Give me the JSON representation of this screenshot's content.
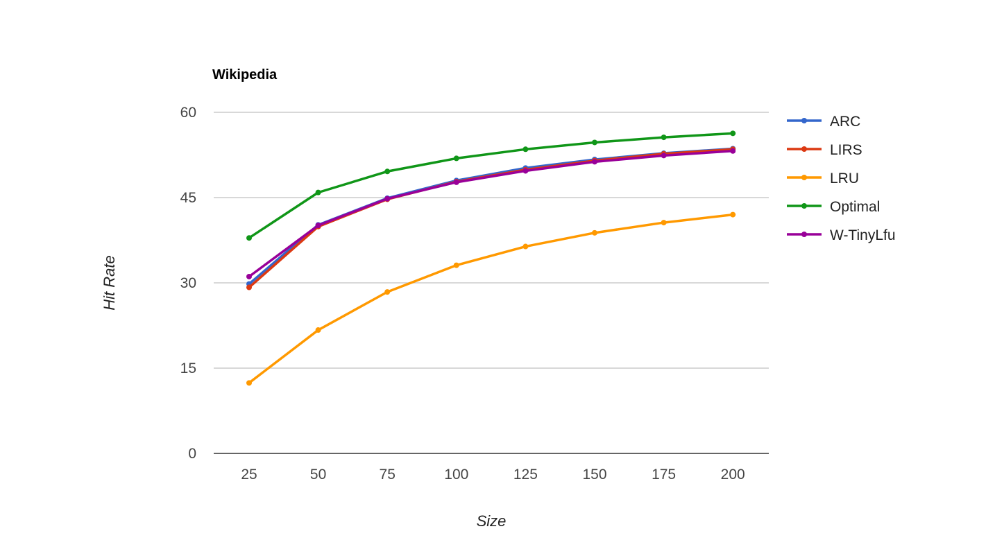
{
  "chart_data": {
    "type": "line",
    "title": "Wikipedia",
    "xlabel": "Size",
    "ylabel": "Hit Rate",
    "x": [
      25,
      50,
      75,
      100,
      125,
      150,
      175,
      200
    ],
    "ylim": [
      0,
      60
    ],
    "yticks": [
      0,
      15,
      30,
      45,
      60
    ],
    "grid": true,
    "legend_position": "right",
    "series": [
      {
        "name": "ARC",
        "color": "#3366cc",
        "values": [
          29.8,
          40.2,
          44.9,
          48.0,
          50.2,
          51.7,
          52.8,
          53.6
        ]
      },
      {
        "name": "LIRS",
        "color": "#dc3912",
        "values": [
          29.2,
          39.9,
          44.7,
          47.8,
          49.9,
          51.5,
          52.7,
          53.5
        ]
      },
      {
        "name": "LRU",
        "color": "#ff9900",
        "values": [
          12.4,
          21.7,
          28.4,
          33.1,
          36.4,
          38.8,
          40.6,
          42.0
        ]
      },
      {
        "name": "Optimal",
        "color": "#109618",
        "values": [
          37.9,
          45.9,
          49.6,
          51.9,
          53.5,
          54.7,
          55.6,
          56.3
        ]
      },
      {
        "name": "W-TinyLfu",
        "color": "#990099",
        "values": [
          31.1,
          40.1,
          44.8,
          47.7,
          49.7,
          51.3,
          52.4,
          53.2
        ]
      }
    ]
  }
}
